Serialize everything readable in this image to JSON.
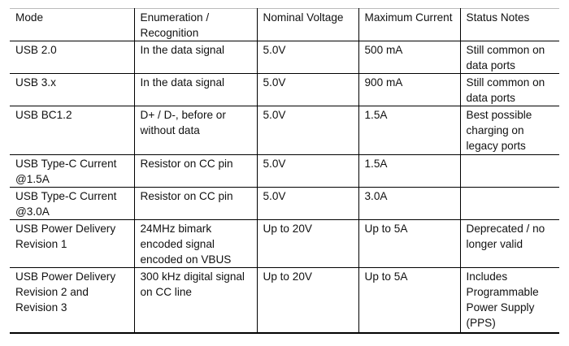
{
  "table": {
    "header": [
      "Mode",
      "Enumeration / Recognition",
      "Nominal Voltage",
      "Maximum Current",
      "Status Notes"
    ],
    "rows": [
      [
        "USB 2.0",
        "In the data signal",
        "5.0V",
        "500 mA",
        "Still common on data ports"
      ],
      [
        "USB 3.x",
        "In the data signal",
        "5.0V",
        "900 mA",
        "Still common on data ports"
      ],
      [
        "USB BC1.2",
        "D+ / D-, before or without data",
        "5.0V",
        "1.5A",
        "Best possible charging on legacy ports"
      ],
      [
        "USB Type-C Current @1.5A",
        "Resistor on CC pin",
        "5.0V",
        "1.5A",
        ""
      ],
      [
        "USB Type-C Current @3.0A",
        "Resistor on CC pin",
        "5.0V",
        "3.0A",
        ""
      ],
      [
        "USB Power Delivery Revision 1",
        "24MHz bimark encoded signal encoded on VBUS",
        "Up to 20V",
        "Up to 5A",
        "Deprecated / no longer valid"
      ],
      [
        "USB Power Delivery Revision 2 and Revision 3",
        "300 kHz digital signal on CC line",
        "Up to 20V",
        "Up to 5A",
        "Includes Programmable Power Supply (PPS)"
      ]
    ]
  }
}
